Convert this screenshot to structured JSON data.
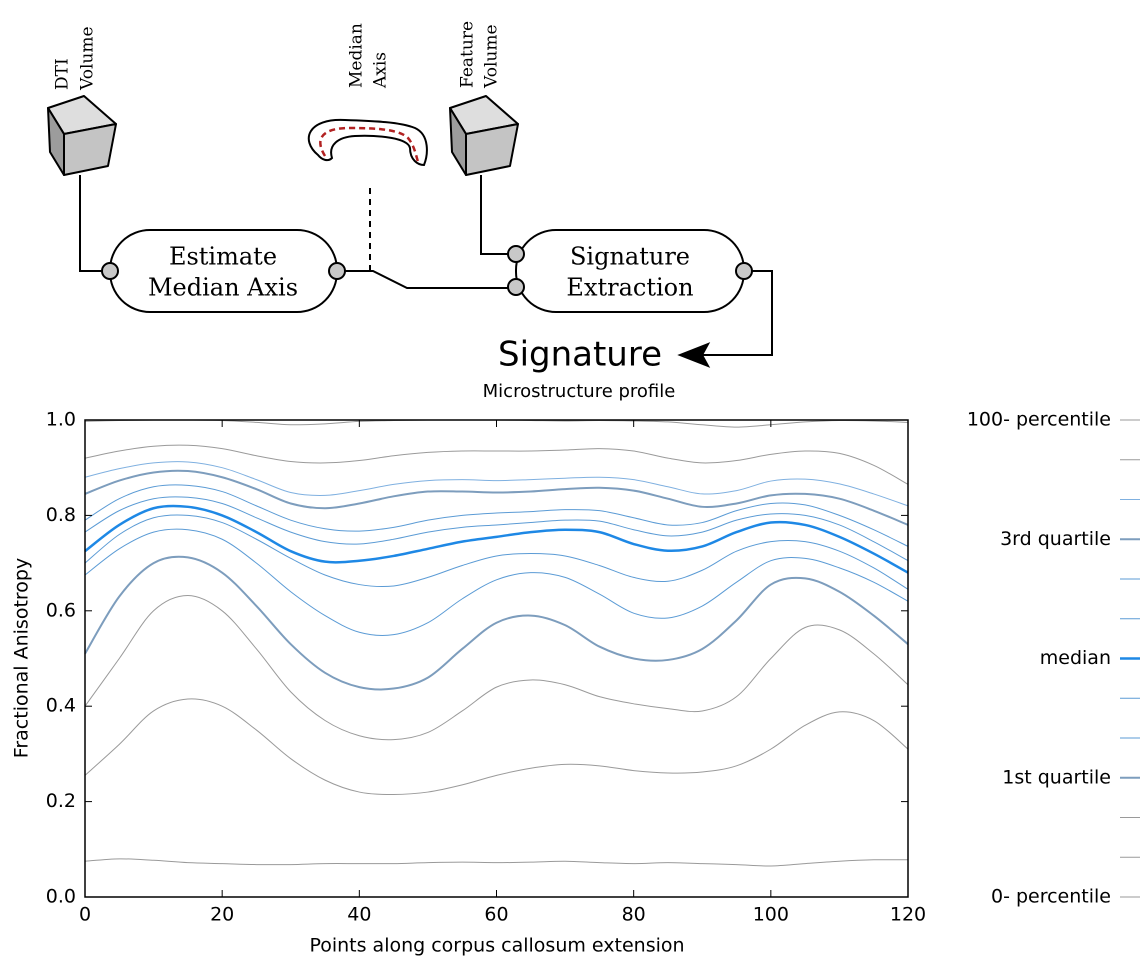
{
  "diagram": {
    "inputs": [
      {
        "lines": [
          "DTI",
          "Volume"
        ]
      },
      {
        "lines": [
          "Median",
          "Axis"
        ]
      },
      {
        "lines": [
          "Feature",
          "Volume"
        ]
      }
    ],
    "steps": [
      {
        "lines": [
          "Estimate",
          "Median Axis"
        ]
      },
      {
        "lines": [
          "Signature",
          "Extraction"
        ]
      }
    ],
    "output": "Signature"
  },
  "chart_data": {
    "type": "line",
    "title": "Microstructure profile",
    "x_label": "Points along corpus callosum extension",
    "y_label": "Fractional Anisotropy",
    "x": [
      0,
      5,
      10,
      15,
      20,
      25,
      30,
      35,
      40,
      45,
      50,
      55,
      60,
      65,
      70,
      75,
      80,
      85,
      90,
      95,
      100,
      105,
      110,
      115,
      120
    ],
    "xlim": [
      0,
      120
    ],
    "xticks": [
      0,
      20,
      40,
      60,
      80,
      100,
      120
    ],
    "ylim": [
      0,
      1
    ],
    "yticks": [
      {
        "value": 0,
        "label": "0.0"
      },
      0.2,
      0.4,
      0.6,
      0.8,
      {
        "value": 1,
        "label": "1.0"
      }
    ],
    "series": [
      {
        "name": "100- percentile",
        "color": "#9a9a9a",
        "width": 1,
        "values": [
          0.997,
          0.999,
          1.0,
          1.0,
          0.999,
          0.995,
          0.99,
          0.992,
          0.997,
          0.999,
          1.0,
          1.0,
          1.0,
          0.999,
          0.998,
          0.999,
          0.998,
          0.996,
          0.99,
          0.985,
          0.99,
          0.996,
          0.999,
          0.998,
          0.995
        ]
      },
      {
        "name": null,
        "color": "#9a9a9a",
        "width": 1,
        "values": [
          0.92,
          0.935,
          0.945,
          0.947,
          0.94,
          0.925,
          0.913,
          0.91,
          0.915,
          0.925,
          0.932,
          0.935,
          0.935,
          0.935,
          0.937,
          0.94,
          0.935,
          0.92,
          0.91,
          0.915,
          0.928,
          0.935,
          0.93,
          0.905,
          0.865
        ]
      },
      {
        "name": null,
        "color": "#7fb0e0",
        "width": 1,
        "values": [
          0.88,
          0.898,
          0.91,
          0.912,
          0.9,
          0.875,
          0.848,
          0.842,
          0.852,
          0.865,
          0.873,
          0.875,
          0.873,
          0.875,
          0.878,
          0.88,
          0.875,
          0.86,
          0.845,
          0.852,
          0.872,
          0.876,
          0.866,
          0.845,
          0.82
        ]
      },
      {
        "name": "3rd quartile",
        "color": "#7d9dbd",
        "width": 2,
        "values": [
          0.845,
          0.873,
          0.89,
          0.893,
          0.88,
          0.855,
          0.825,
          0.815,
          0.825,
          0.84,
          0.85,
          0.85,
          0.848,
          0.85,
          0.855,
          0.858,
          0.852,
          0.835,
          0.818,
          0.825,
          0.842,
          0.845,
          0.835,
          0.81,
          0.78
        ]
      },
      {
        "name": null,
        "color": "#5b9bd5",
        "width": 1,
        "values": [
          0.79,
          0.835,
          0.86,
          0.863,
          0.85,
          0.82,
          0.79,
          0.772,
          0.767,
          0.775,
          0.79,
          0.8,
          0.805,
          0.808,
          0.812,
          0.81,
          0.795,
          0.78,
          0.785,
          0.81,
          0.825,
          0.822,
          0.8,
          0.77,
          0.735
        ]
      },
      {
        "name": null,
        "color": "#5b9bd5",
        "width": 1,
        "values": [
          0.765,
          0.81,
          0.835,
          0.838,
          0.825,
          0.795,
          0.765,
          0.745,
          0.74,
          0.75,
          0.765,
          0.775,
          0.78,
          0.785,
          0.79,
          0.788,
          0.77,
          0.757,
          0.765,
          0.79,
          0.803,
          0.8,
          0.78,
          0.745,
          0.705
        ]
      },
      {
        "name": "median",
        "color": "#1e88e5",
        "width": 2.5,
        "values": [
          0.725,
          0.78,
          0.815,
          0.818,
          0.8,
          0.765,
          0.725,
          0.703,
          0.705,
          0.715,
          0.73,
          0.745,
          0.755,
          0.765,
          0.77,
          0.765,
          0.74,
          0.726,
          0.735,
          0.765,
          0.785,
          0.78,
          0.755,
          0.72,
          0.68
        ]
      },
      {
        "name": null,
        "color": "#5b9bd5",
        "width": 1,
        "values": [
          0.7,
          0.76,
          0.795,
          0.8,
          0.785,
          0.75,
          0.71,
          0.675,
          0.655,
          0.652,
          0.67,
          0.695,
          0.715,
          0.72,
          0.715,
          0.695,
          0.67,
          0.662,
          0.685,
          0.725,
          0.745,
          0.745,
          0.725,
          0.69,
          0.645
        ]
      },
      {
        "name": null,
        "color": "#5b9bd5",
        "width": 1,
        "values": [
          0.675,
          0.73,
          0.765,
          0.77,
          0.75,
          0.7,
          0.64,
          0.59,
          0.555,
          0.55,
          0.575,
          0.625,
          0.665,
          0.68,
          0.67,
          0.635,
          0.595,
          0.585,
          0.61,
          0.66,
          0.705,
          0.71,
          0.69,
          0.66,
          0.62
        ]
      },
      {
        "name": "1st quartile",
        "color": "#7d9dbd",
        "width": 2,
        "values": [
          0.51,
          0.63,
          0.7,
          0.712,
          0.68,
          0.61,
          0.53,
          0.47,
          0.44,
          0.437,
          0.46,
          0.52,
          0.575,
          0.59,
          0.57,
          0.525,
          0.5,
          0.497,
          0.52,
          0.58,
          0.655,
          0.668,
          0.64,
          0.59,
          0.53
        ]
      },
      {
        "name": null,
        "color": "#9a9a9a",
        "width": 1,
        "values": [
          0.4,
          0.5,
          0.6,
          0.632,
          0.6,
          0.52,
          0.43,
          0.37,
          0.338,
          0.33,
          0.345,
          0.39,
          0.44,
          0.455,
          0.445,
          0.42,
          0.405,
          0.395,
          0.39,
          0.42,
          0.5,
          0.565,
          0.56,
          0.51,
          0.445
        ]
      },
      {
        "name": null,
        "color": "#9a9a9a",
        "width": 1,
        "values": [
          0.255,
          0.32,
          0.39,
          0.415,
          0.4,
          0.35,
          0.29,
          0.245,
          0.22,
          0.215,
          0.22,
          0.235,
          0.255,
          0.27,
          0.278,
          0.275,
          0.265,
          0.26,
          0.262,
          0.275,
          0.31,
          0.36,
          0.388,
          0.37,
          0.31
        ]
      },
      {
        "name": "0- percentile",
        "color": "#9a9a9a",
        "width": 1,
        "values": [
          0.075,
          0.08,
          0.077,
          0.072,
          0.07,
          0.068,
          0.068,
          0.07,
          0.07,
          0.07,
          0.072,
          0.073,
          0.072,
          0.073,
          0.075,
          0.072,
          0.07,
          0.072,
          0.07,
          0.068,
          0.065,
          0.07,
          0.075,
          0.078,
          0.078
        ]
      }
    ]
  }
}
